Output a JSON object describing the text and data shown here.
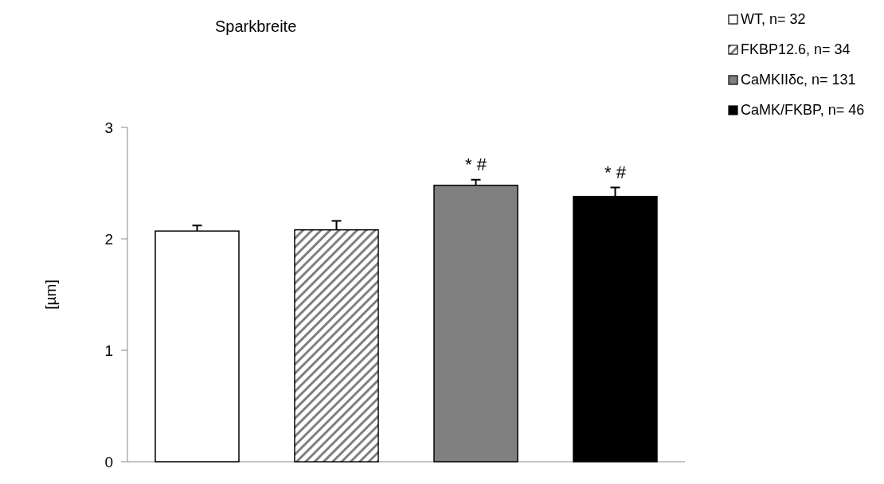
{
  "chart_data": {
    "type": "bar",
    "title": "Sparkbreite",
    "ylabel": "[µm]",
    "categories": [
      null
    ],
    "series": [
      {
        "name": "WT, n= 32",
        "color": "#ffffff",
        "values": [
          2.07
        ],
        "errors": [
          0.05
        ]
      },
      {
        "name": "FKBP12.6, n= 34",
        "color": "#808080",
        "values": [
          2.08
        ],
        "errors": [
          0.08
        ]
      },
      {
        "name": "CaMKIIδc, n= 131",
        "color": "#808080",
        "values": [
          2.48
        ],
        "errors": [
          0.05
        ]
      },
      {
        "name": "CaMK/FKBP, n= 46",
        "color": "#000000",
        "values": [
          2.38
        ],
        "errors": [
          0.08
        ]
      }
    ],
    "annotations": [
      "* #",
      "* #"
    ],
    "ylim": [
      0,
      3
    ],
    "yticks": [
      0,
      1,
      2,
      3
    ],
    "grid": false,
    "legend": "top right"
  }
}
